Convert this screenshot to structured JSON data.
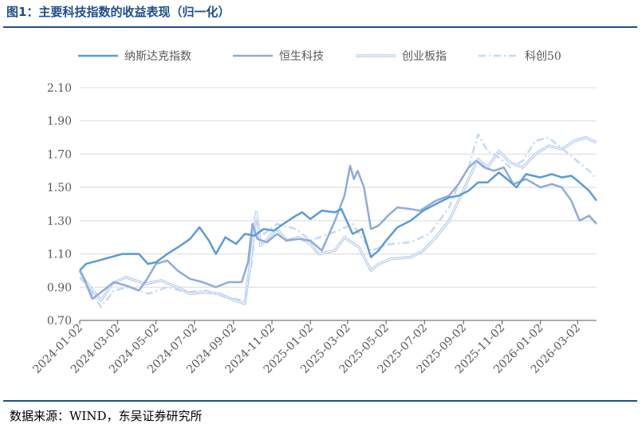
{
  "title": "图1：主要科技指数的收益表现（归一化）",
  "source": "数据来源：WIND，东吴证券研究所",
  "chart_data": {
    "type": "line",
    "ylim": [
      0.7,
      2.1
    ],
    "yticks": [
      "0.70",
      "0.90",
      "1.10",
      "1.30",
      "1.50",
      "1.70",
      "1.90",
      "2.10"
    ],
    "xticks": [
      "2024-01-02",
      "2024-03-02",
      "2024-05-02",
      "2024-07-02",
      "2024-09-02",
      "2024-11-02",
      "2025-01-02",
      "2025-03-02",
      "2025-05-02",
      "2025-07-02",
      "2025-09-02",
      "2025-11-02",
      "2026-01-02",
      "2026-03-02"
    ],
    "xrange": [
      "2024-01-02",
      "2026-04-01"
    ],
    "grid": "horizontal",
    "legend_position": "top",
    "series": [
      {
        "name": "纳斯达克指数",
        "color": "#5b9bd5",
        "style": "solid",
        "points": [
          [
            "2024-01-02",
            1.0
          ],
          [
            "2024-01-12",
            1.04
          ],
          [
            "2024-02-01",
            1.06
          ],
          [
            "2024-02-20",
            1.08
          ],
          [
            "2024-03-10",
            1.1
          ],
          [
            "2024-04-05",
            1.1
          ],
          [
            "2024-04-19",
            1.04
          ],
          [
            "2024-05-02",
            1.05
          ],
          [
            "2024-05-20",
            1.1
          ],
          [
            "2024-06-10",
            1.15
          ],
          [
            "2024-06-25",
            1.19
          ],
          [
            "2024-07-10",
            1.26
          ],
          [
            "2024-07-25",
            1.18
          ],
          [
            "2024-08-05",
            1.1
          ],
          [
            "2024-08-20",
            1.2
          ],
          [
            "2024-09-06",
            1.16
          ],
          [
            "2024-09-20",
            1.22
          ],
          [
            "2024-10-05",
            1.21
          ],
          [
            "2024-10-20",
            1.25
          ],
          [
            "2024-11-05",
            1.24
          ],
          [
            "2024-11-20",
            1.28
          ],
          [
            "2024-12-10",
            1.33
          ],
          [
            "2024-12-20",
            1.35
          ],
          [
            "2025-01-02",
            1.31
          ],
          [
            "2025-01-20",
            1.36
          ],
          [
            "2025-02-10",
            1.35
          ],
          [
            "2025-02-20",
            1.37
          ],
          [
            "2025-03-10",
            1.22
          ],
          [
            "2025-03-25",
            1.25
          ],
          [
            "2025-04-08",
            1.08
          ],
          [
            "2025-04-20",
            1.12
          ],
          [
            "2025-05-02",
            1.18
          ],
          [
            "2025-05-20",
            1.26
          ],
          [
            "2025-06-10",
            1.3
          ],
          [
            "2025-06-30",
            1.36
          ],
          [
            "2025-07-20",
            1.4
          ],
          [
            "2025-08-10",
            1.44
          ],
          [
            "2025-08-25",
            1.45
          ],
          [
            "2025-09-10",
            1.48
          ],
          [
            "2025-09-25",
            1.53
          ],
          [
            "2025-10-10",
            1.53
          ],
          [
            "2025-10-28",
            1.59
          ],
          [
            "2025-11-10",
            1.55
          ],
          [
            "2025-11-25",
            1.5
          ],
          [
            "2025-12-10",
            1.58
          ],
          [
            "2026-01-02",
            1.56
          ],
          [
            "2026-01-20",
            1.58
          ],
          [
            "2026-02-05",
            1.56
          ],
          [
            "2026-02-20",
            1.57
          ],
          [
            "2026-03-05",
            1.53
          ],
          [
            "2026-03-20",
            1.48
          ],
          [
            "2026-04-01",
            1.42
          ]
        ]
      },
      {
        "name": "恒生科技",
        "color": "#8faadc",
        "style": "solid",
        "points": [
          [
            "2024-01-02",
            1.0
          ],
          [
            "2024-01-10",
            0.94
          ],
          [
            "2024-01-22",
            0.83
          ],
          [
            "2024-02-05",
            0.87
          ],
          [
            "2024-02-25",
            0.93
          ],
          [
            "2024-03-15",
            0.91
          ],
          [
            "2024-04-05",
            0.88
          ],
          [
            "2024-04-18",
            0.95
          ],
          [
            "2024-05-02",
            1.04
          ],
          [
            "2024-05-20",
            1.06
          ],
          [
            "2024-06-05",
            1.0
          ],
          [
            "2024-06-25",
            0.95
          ],
          [
            "2024-07-15",
            0.93
          ],
          [
            "2024-08-05",
            0.9
          ],
          [
            "2024-08-25",
            0.93
          ],
          [
            "2024-09-15",
            0.93
          ],
          [
            "2024-09-25",
            1.05
          ],
          [
            "2024-10-02",
            1.28
          ],
          [
            "2024-10-10",
            1.19
          ],
          [
            "2024-10-25",
            1.17
          ],
          [
            "2024-11-10",
            1.22
          ],
          [
            "2024-11-25",
            1.18
          ],
          [
            "2024-12-15",
            1.19
          ],
          [
            "2025-01-02",
            1.18
          ],
          [
            "2025-01-20",
            1.12
          ],
          [
            "2025-02-10",
            1.3
          ],
          [
            "2025-02-25",
            1.45
          ],
          [
            "2025-03-06",
            1.63
          ],
          [
            "2025-03-12",
            1.55
          ],
          [
            "2025-03-18",
            1.6
          ],
          [
            "2025-03-28",
            1.5
          ],
          [
            "2025-04-08",
            1.25
          ],
          [
            "2025-04-20",
            1.27
          ],
          [
            "2025-05-05",
            1.33
          ],
          [
            "2025-05-20",
            1.38
          ],
          [
            "2025-06-10",
            1.37
          ],
          [
            "2025-06-25",
            1.36
          ],
          [
            "2025-07-20",
            1.42
          ],
          [
            "2025-08-10",
            1.45
          ],
          [
            "2025-08-25",
            1.52
          ],
          [
            "2025-09-10",
            1.62
          ],
          [
            "2025-09-22",
            1.66
          ],
          [
            "2025-10-05",
            1.62
          ],
          [
            "2025-10-20",
            1.6
          ],
          [
            "2025-11-05",
            1.62
          ],
          [
            "2025-11-20",
            1.52
          ],
          [
            "2025-12-10",
            1.55
          ],
          [
            "2026-01-02",
            1.5
          ],
          [
            "2026-01-20",
            1.52
          ],
          [
            "2026-02-05",
            1.5
          ],
          [
            "2026-02-20",
            1.42
          ],
          [
            "2026-03-05",
            1.3
          ],
          [
            "2026-03-20",
            1.33
          ],
          [
            "2026-04-01",
            1.28
          ]
        ]
      },
      {
        "name": "创业板指",
        "color": "#a9c4e8",
        "style": "double",
        "points": [
          [
            "2024-01-02",
            1.0
          ],
          [
            "2024-01-12",
            0.93
          ],
          [
            "2024-02-05",
            0.82
          ],
          [
            "2024-02-22",
            0.92
          ],
          [
            "2024-03-15",
            0.96
          ],
          [
            "2024-04-15",
            0.92
          ],
          [
            "2024-05-10",
            0.94
          ],
          [
            "2024-06-05",
            0.9
          ],
          [
            "2024-06-25",
            0.86
          ],
          [
            "2024-07-20",
            0.87
          ],
          [
            "2024-08-10",
            0.86
          ],
          [
            "2024-09-05",
            0.82
          ],
          [
            "2024-09-20",
            0.8
          ],
          [
            "2024-09-27",
            1.0
          ],
          [
            "2024-10-08",
            1.35
          ],
          [
            "2024-10-15",
            1.15
          ],
          [
            "2024-10-28",
            1.2
          ],
          [
            "2024-11-10",
            1.25
          ],
          [
            "2024-11-25",
            1.18
          ],
          [
            "2024-12-15",
            1.2
          ],
          [
            "2025-01-02",
            1.16
          ],
          [
            "2025-01-15",
            1.1
          ],
          [
            "2025-02-10",
            1.12
          ],
          [
            "2025-02-25",
            1.2
          ],
          [
            "2025-03-20",
            1.14
          ],
          [
            "2025-04-08",
            1.0
          ],
          [
            "2025-04-20",
            1.04
          ],
          [
            "2025-05-10",
            1.07
          ],
          [
            "2025-06-10",
            1.08
          ],
          [
            "2025-06-30",
            1.12
          ],
          [
            "2025-07-20",
            1.2
          ],
          [
            "2025-08-10",
            1.3
          ],
          [
            "2025-08-25",
            1.42
          ],
          [
            "2025-09-10",
            1.55
          ],
          [
            "2025-09-25",
            1.67
          ],
          [
            "2025-10-10",
            1.62
          ],
          [
            "2025-10-28",
            1.72
          ],
          [
            "2025-11-15",
            1.65
          ],
          [
            "2025-12-05",
            1.62
          ],
          [
            "2025-12-25",
            1.7
          ],
          [
            "2026-01-15",
            1.75
          ],
          [
            "2026-02-05",
            1.73
          ],
          [
            "2026-02-25",
            1.78
          ],
          [
            "2026-03-15",
            1.8
          ],
          [
            "2026-04-01",
            1.77
          ]
        ]
      },
      {
        "name": "科创50",
        "color": "#c5d9f1",
        "style": "dashdot",
        "points": [
          [
            "2024-01-02",
            0.96
          ],
          [
            "2024-01-15",
            0.9
          ],
          [
            "2024-02-05",
            0.78
          ],
          [
            "2024-02-25",
            0.88
          ],
          [
            "2024-03-20",
            0.9
          ],
          [
            "2024-04-20",
            0.86
          ],
          [
            "2024-05-20",
            0.9
          ],
          [
            "2024-06-20",
            0.87
          ],
          [
            "2024-07-20",
            0.88
          ],
          [
            "2024-08-20",
            0.84
          ],
          [
            "2024-09-20",
            0.82
          ],
          [
            "2024-09-30",
            1.02
          ],
          [
            "2024-10-08",
            1.3
          ],
          [
            "2024-10-20",
            1.22
          ],
          [
            "2024-11-10",
            1.28
          ],
          [
            "2024-12-10",
            1.25
          ],
          [
            "2025-01-02",
            1.18
          ],
          [
            "2025-02-15",
            1.24
          ],
          [
            "2025-03-10",
            1.28
          ],
          [
            "2025-04-08",
            1.12
          ],
          [
            "2025-05-10",
            1.16
          ],
          [
            "2025-06-10",
            1.17
          ],
          [
            "2025-07-10",
            1.22
          ],
          [
            "2025-08-10",
            1.38
          ],
          [
            "2025-08-25",
            1.52
          ],
          [
            "2025-09-10",
            1.62
          ],
          [
            "2025-09-25",
            1.82
          ],
          [
            "2025-10-10",
            1.72
          ],
          [
            "2025-10-28",
            1.68
          ],
          [
            "2025-11-15",
            1.62
          ],
          [
            "2025-12-05",
            1.66
          ],
          [
            "2025-12-25",
            1.78
          ],
          [
            "2026-01-15",
            1.8
          ],
          [
            "2026-02-10",
            1.72
          ],
          [
            "2026-03-01",
            1.66
          ],
          [
            "2026-03-20",
            1.6
          ],
          [
            "2026-04-01",
            1.55
          ]
        ]
      }
    ]
  }
}
